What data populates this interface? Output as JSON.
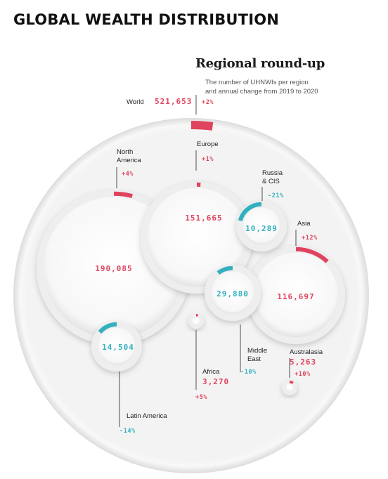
{
  "header": {
    "title": "GLOBAL WEALTH DISTRIBUTION",
    "subtitle": "Regional round-up",
    "description_line1": "The number of UHNWIs per region",
    "description_line2": "and annual change from 2019 to 2020"
  },
  "colors": {
    "increase": "#e0435e",
    "decrease": "#33b0c0",
    "text": "#222222",
    "ring": "#e6e6e6"
  },
  "chart_data": {
    "type": "bubble",
    "title": "Regional round-up",
    "unit": "number of UHNWIs",
    "total": {
      "name": "World",
      "value": 521653,
      "value_label": "521,653",
      "change": 2,
      "change_label": "+2%"
    },
    "regions": [
      {
        "name": "North America",
        "value": 190085,
        "value_label": "190,085",
        "change": 4,
        "change_label": "+4%"
      },
      {
        "name": "Europe",
        "value": 151665,
        "value_label": "151,665",
        "change": 1,
        "change_label": "+1%"
      },
      {
        "name": "Asia",
        "value": 116697,
        "value_label": "116,697",
        "change": 12,
        "change_label": "+12%"
      },
      {
        "name": "Middle East",
        "value": 29880,
        "value_label": "29,880",
        "change": -10,
        "change_label": "-10%"
      },
      {
        "name": "Latin America",
        "value": 14504,
        "value_label": "14,504",
        "change": -14,
        "change_label": "-14%"
      },
      {
        "name": "Russia & CIS",
        "value": 10289,
        "value_label": "10,289",
        "change": -21,
        "change_label": "-21%"
      },
      {
        "name": "Australasia",
        "value": 5263,
        "value_label": "5,263",
        "change": 10,
        "change_label": "+10%"
      },
      {
        "name": "Africa",
        "value": 3270,
        "value_label": "3,270",
        "change": 5,
        "change_label": "+5%"
      }
    ]
  }
}
